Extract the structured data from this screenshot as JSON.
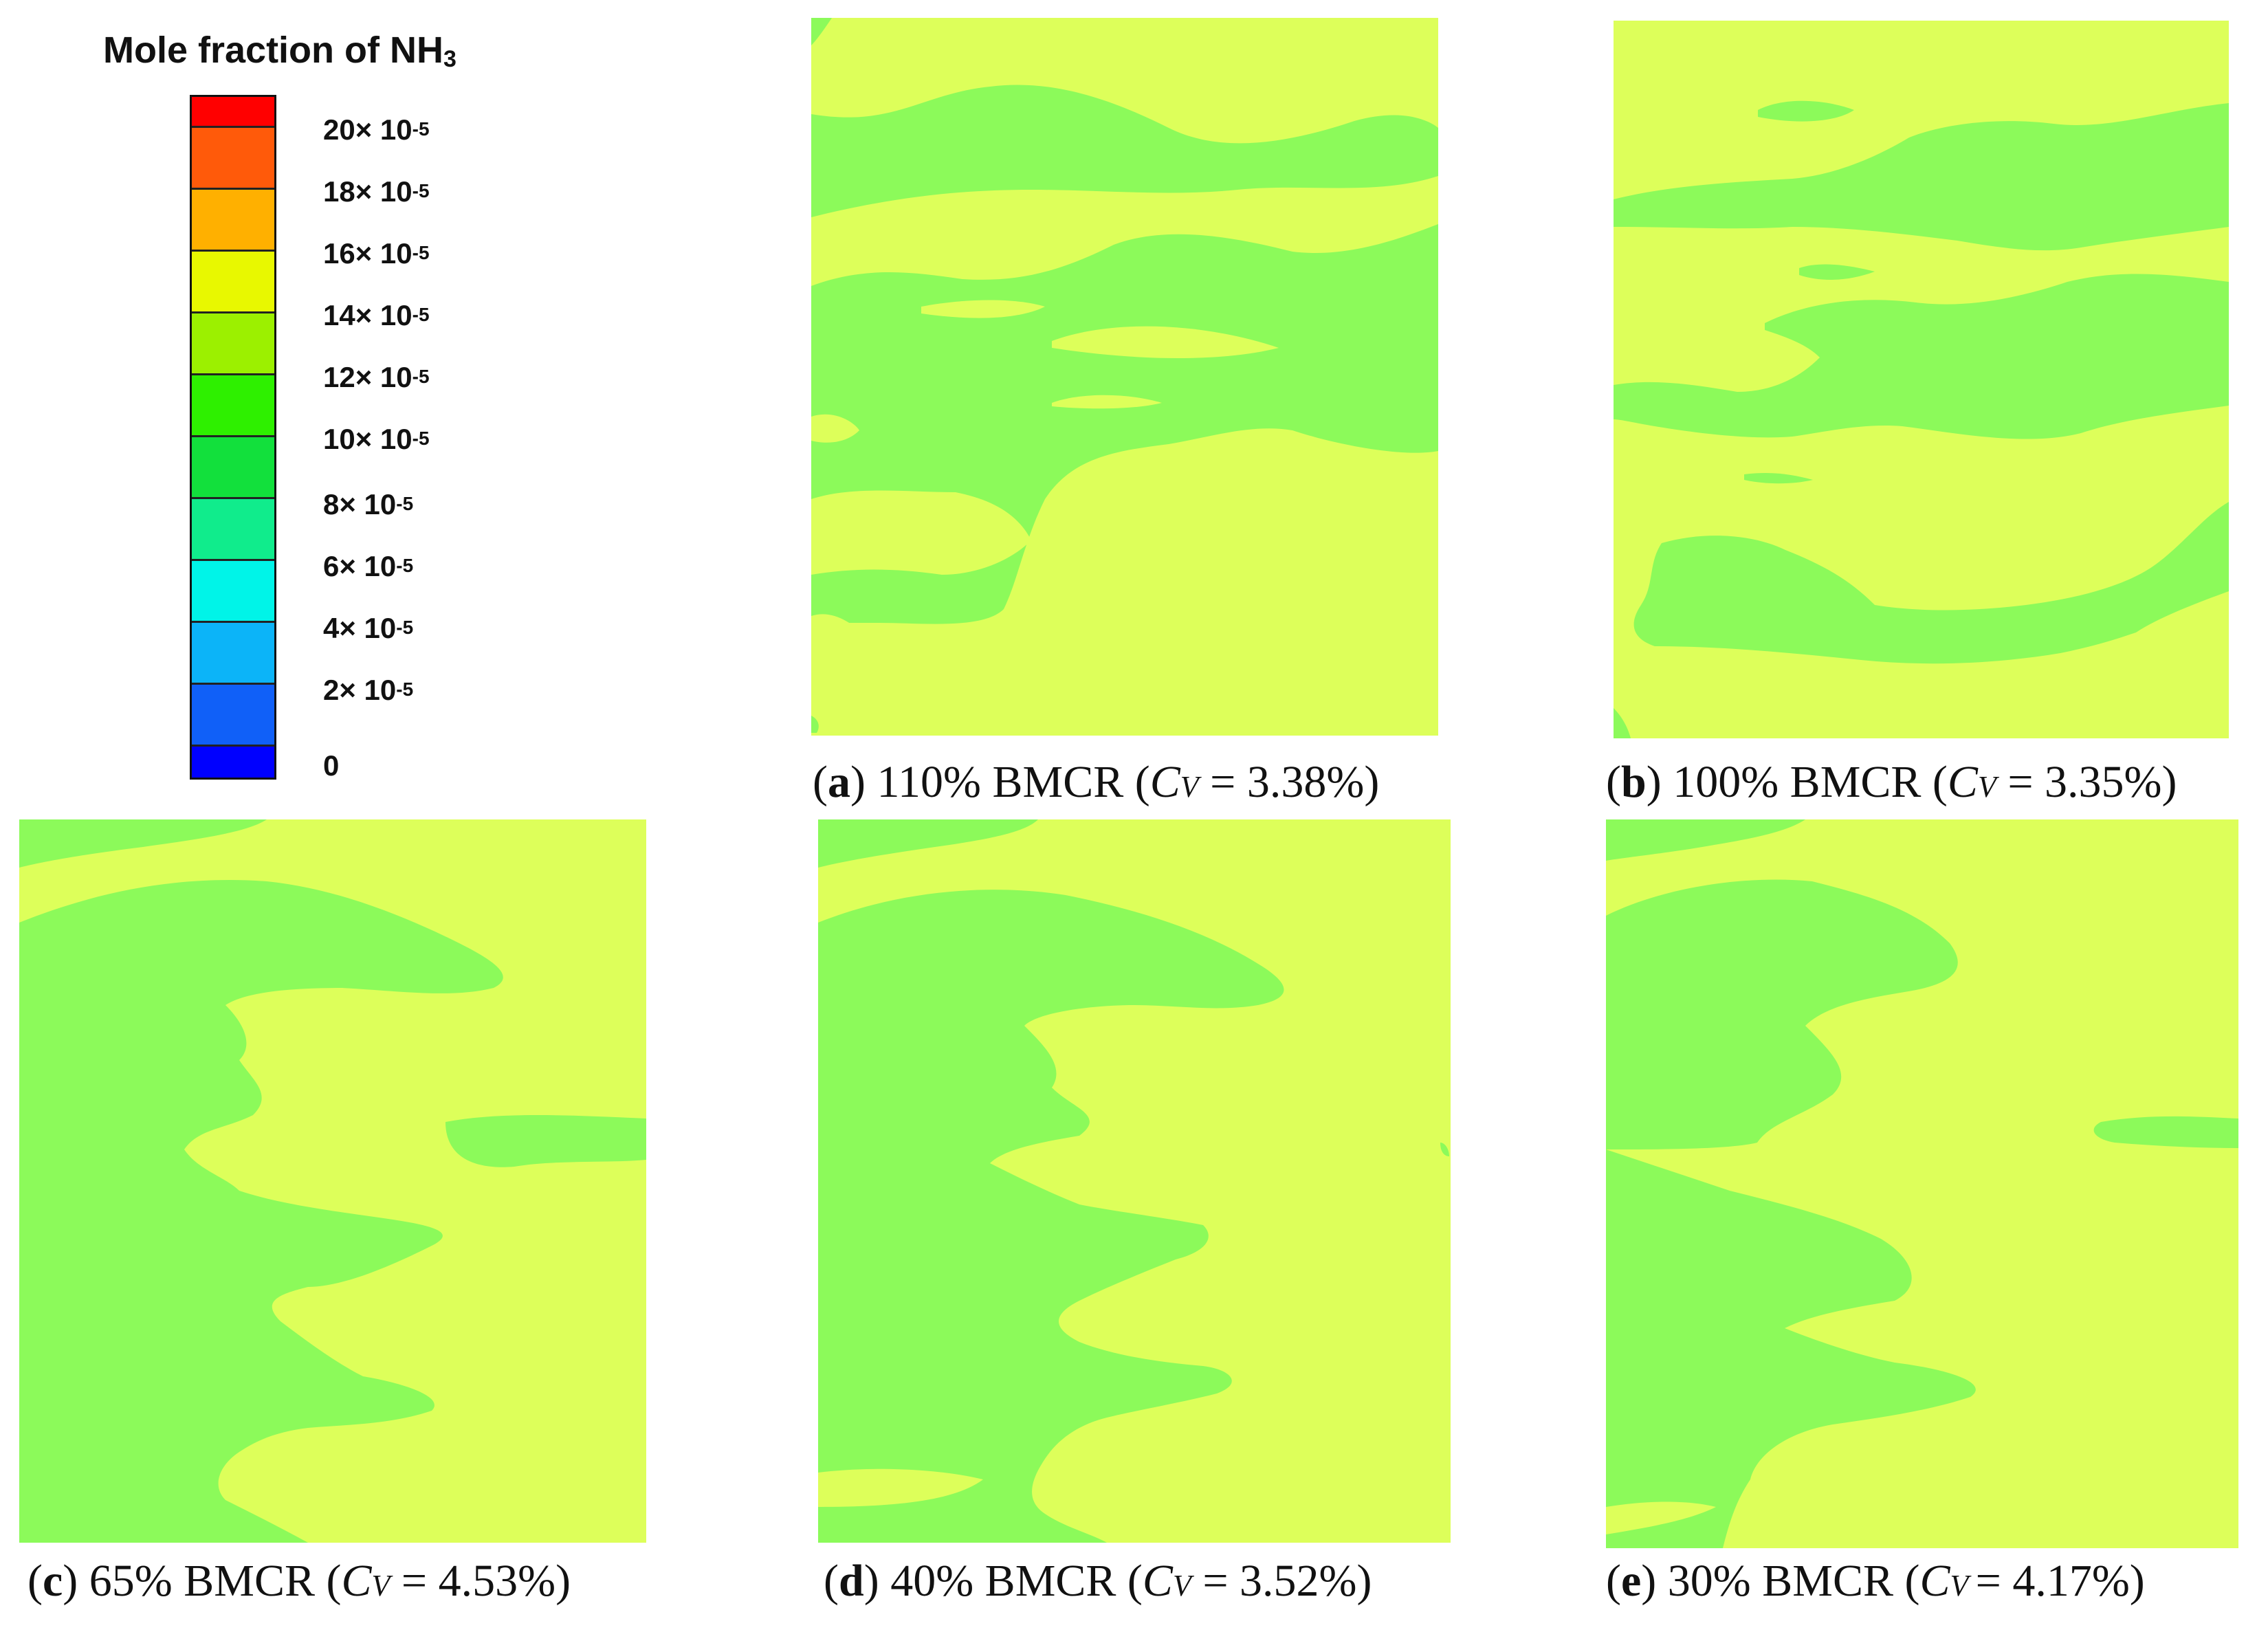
{
  "legend": {
    "title_main": "Mole fraction of NH",
    "title_sub": "3",
    "levels": [
      {
        "color": "#ff0000"
      },
      {
        "color": "#ff5a0a"
      },
      {
        "color": "#ffb000"
      },
      {
        "color": "#e8f800"
      },
      {
        "color": "#9cf000"
      },
      {
        "color": "#2ef000"
      },
      {
        "color": "#12e03c"
      },
      {
        "color": "#10ec8c"
      },
      {
        "color": "#00f4e8"
      },
      {
        "color": "#0cb4f8"
      },
      {
        "color": "#1060f8"
      },
      {
        "color": "#0000ff"
      }
    ],
    "ticks": [
      {
        "mant": "20× 10",
        "exp": "-5"
      },
      {
        "mant": "18× 10",
        "exp": "-5"
      },
      {
        "mant": "16× 10",
        "exp": "-5"
      },
      {
        "mant": "14× 10",
        "exp": "-5"
      },
      {
        "mant": "12× 10",
        "exp": "-5"
      },
      {
        "mant": "10× 10",
        "exp": "-5"
      },
      {
        "mant": "8× 10",
        "exp": "-5"
      },
      {
        "mant": "6× 10",
        "exp": "-5"
      },
      {
        "mant": "4× 10",
        "exp": "-5"
      },
      {
        "mant": "2× 10",
        "exp": "-5"
      },
      {
        "mant": "0",
        "exp": ""
      }
    ]
  },
  "colors": {
    "background_field": "#ddff5a",
    "green_region": "#8cfa5a"
  },
  "panels": [
    {
      "id": "a",
      "label": "a",
      "text": " 110% BMCR (",
      "c": "C",
      "v": "V",
      "eq": " = 3.38%)"
    },
    {
      "id": "b",
      "label": "b",
      "text": " 100% BMCR (",
      "c": "C",
      "v": "V",
      "eq": " = 3.35%)"
    },
    {
      "id": "c",
      "label": "c",
      "text": " 65% BMCR (",
      "c": "C",
      "v": "V",
      "eq": " = 4.53%)"
    },
    {
      "id": "d",
      "label": "d",
      "text": " 40% BMCR (",
      "c": "C",
      "v": "V",
      "eq": " = 3.52%)"
    },
    {
      "id": "e",
      "label": "e",
      "text": " 30% BMCR (",
      "c": "C",
      "v": "V   ",
      "eq": " = 4.17%)"
    }
  ]
}
